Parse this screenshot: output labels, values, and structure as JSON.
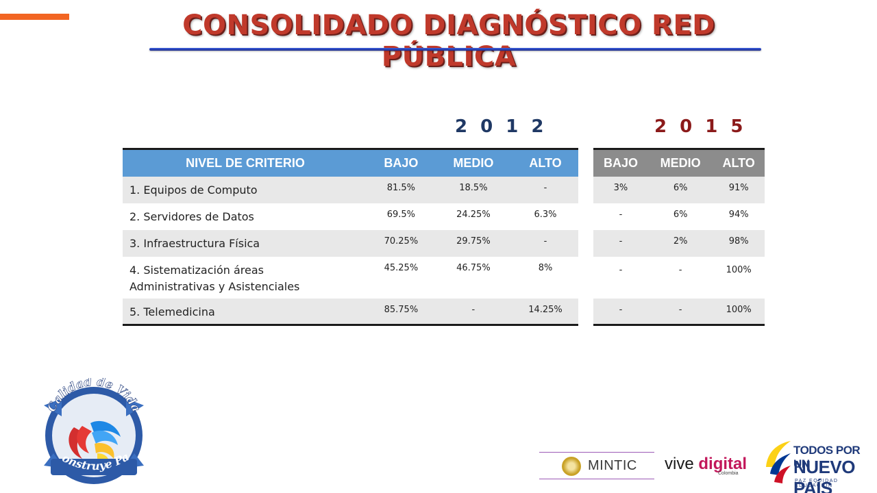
{
  "header": {
    "title": "CONSOLIDADO DIAGNÓSTICO RED PÚBLICA"
  },
  "years": {
    "first": "2 0 1 2",
    "second": "2 0 1 5"
  },
  "table2012": {
    "headers": [
      "NIVEL DE CRITERIO",
      "BAJO",
      "MEDIO",
      "ALTO"
    ],
    "rows": [
      {
        "criterio": "1. Equipos de Computo",
        "bajo": "81.5%",
        "medio": "18.5%",
        "alto": "-"
      },
      {
        "criterio": "2. Servidores de Datos",
        "bajo": "69.5%",
        "medio": "24.25%",
        "alto": "6.3%"
      },
      {
        "criterio": "3. Infraestructura  Física",
        "bajo": "70.25%",
        "medio": "29.75%",
        "alto": "-"
      },
      {
        "criterio_l1": "4. Sistematización áreas",
        "criterio_l2": "Administrativas  y  Asistenciales",
        "bajo": "45.25%",
        "medio": "46.75%",
        "alto": "8%"
      },
      {
        "criterio": "5. Telemedicina",
        "bajo": "85.75%",
        "medio": "-",
        "alto": "14.25%"
      }
    ]
  },
  "table2015": {
    "headers": [
      "BAJO",
      "MEDIO",
      "ALTO"
    ],
    "rows": [
      {
        "bajo": "3%",
        "medio": "6%",
        "alto": "91%"
      },
      {
        "bajo": "-",
        "medio": "6%",
        "alto": "94%"
      },
      {
        "bajo": "-",
        "medio": "2%",
        "alto": "98%"
      },
      {
        "bajo": "-",
        "medio": "-",
        "alto": "100%"
      },
      {
        "bajo": "-",
        "medio": "-",
        "alto": "100%"
      }
    ]
  },
  "logos": {
    "calidad": {
      "top": "Calidad de Vida",
      "bottom": "Construye Paz"
    },
    "mintic": "MINTIC",
    "vive": {
      "vive": "vive",
      "digital": "digital",
      "sub": "Colombia"
    },
    "todos": {
      "l1": "TODOS POR UN",
      "l2": "NUEVO PAÍS",
      "l3": "PAZ  EQUIDAD  EDUCACIÓN"
    }
  },
  "colors": {
    "accent": "#f26522",
    "title": "#c0392b",
    "header2012": "#5b9bd5",
    "header2015": "#8c8c8c",
    "year2012": "#1f3864",
    "year2015": "#8b1a1a"
  }
}
